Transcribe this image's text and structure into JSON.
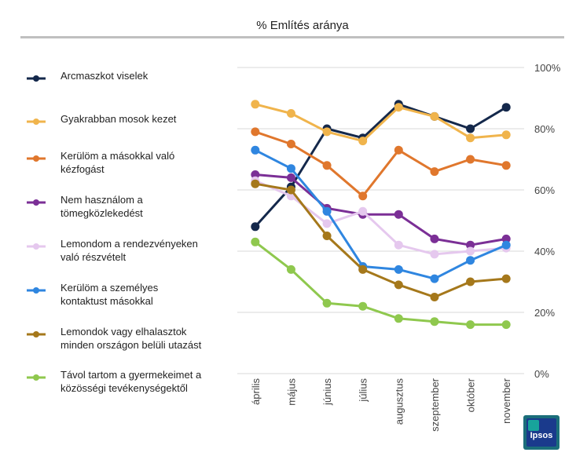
{
  "chart_data": {
    "type": "line",
    "title": "% Említés aránya",
    "categories": [
      "április",
      "május",
      "június",
      "július",
      "augusztus",
      "szeptember",
      "október",
      "november"
    ],
    "ylim": [
      0,
      100
    ],
    "yticks": [
      "0%",
      "20%",
      "40%",
      "60%",
      "80%",
      "100%"
    ],
    "grid": true,
    "legend": "left",
    "series": [
      {
        "name": "Arcmaszkot viselek",
        "color": "#14284b",
        "values": [
          48,
          61,
          80,
          77,
          88,
          84,
          80,
          87
        ]
      },
      {
        "name": "Gyakrabban mosok kezet",
        "color": "#f0b44c",
        "values": [
          88,
          85,
          79,
          76,
          87,
          84,
          77,
          78
        ]
      },
      {
        "name": "Kerülöm a másokkal való kézfogást",
        "color": "#e0772d",
        "values": [
          79,
          75,
          68,
          58,
          73,
          66,
          70,
          68
        ]
      },
      {
        "name": "Nem használom a tömegközlekedést",
        "color": "#7b2f96",
        "values": [
          65,
          64,
          54,
          52,
          52,
          44,
          42,
          44
        ]
      },
      {
        "name": "Lemondom a rendezvényeken való részvételt",
        "color": "#e5c8ee",
        "values": [
          63,
          58,
          49,
          53,
          42,
          39,
          40,
          41
        ]
      },
      {
        "name": "Kerülöm a személyes kontaktust másokkal",
        "color": "#2f86e0",
        "values": [
          73,
          67,
          53,
          35,
          34,
          31,
          37,
          42
        ]
      },
      {
        "name": "Lemondok vagy elhalasztok minden országon belüli utazást",
        "color": "#a5781b",
        "values": [
          62,
          60,
          45,
          34,
          29,
          25,
          30,
          31
        ]
      },
      {
        "name": "Távol tartom a gyermekeimet a közösségi tevékenységektől",
        "color": "#8fc84e",
        "values": [
          43,
          34,
          23,
          22,
          18,
          17,
          16,
          16
        ]
      }
    ],
    "legend_lines": [
      [
        "Arcmaszkot viselek"
      ],
      [
        "Gyakrabban mosok kezet"
      ],
      [
        "Kerülöm a másokkal való",
        "kézfogást"
      ],
      [
        "Nem használom a",
        "tömegközlekedést"
      ],
      [
        "Lemondom a rendezvényeken",
        "való részvételt"
      ],
      [
        "Kerülöm a személyes",
        "kontaktust másokkal"
      ],
      [
        "Lemondok vagy elhalasztok",
        "minden országon belüli utazást"
      ],
      [
        "Távol tartom a gyermekeimet a",
        "közösségi tevékenységektől"
      ]
    ]
  },
  "brand": {
    "logo_text": "Ipsos"
  }
}
